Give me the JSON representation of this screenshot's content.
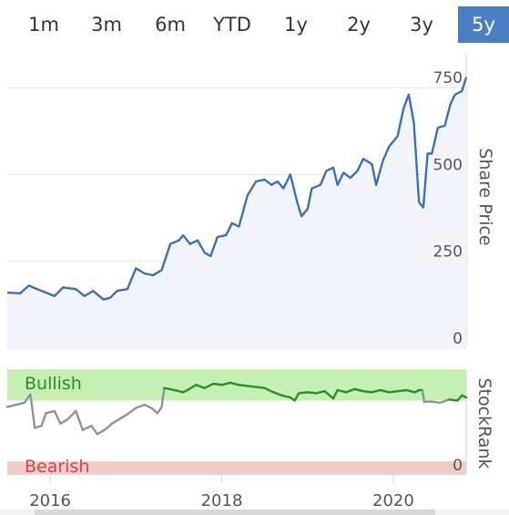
{
  "range_selector": {
    "buttons": [
      {
        "label": "1m"
      },
      {
        "label": "3m"
      },
      {
        "label": "6m"
      },
      {
        "label": "YTD"
      },
      {
        "label": "1y"
      },
      {
        "label": "2y"
      },
      {
        "label": "3y"
      },
      {
        "label": "5y"
      }
    ],
    "active_label": "5y"
  },
  "colors": {
    "price_line": "#3c6fb8",
    "price_area": "#f3f5fb",
    "bullish_band": "#c6efb6",
    "bearish_band": "#f1ccc4",
    "rank_bullish_line": "#2e8b2e",
    "rank_neutral_line": "#8a93a5",
    "active_button": "#4a7fc4"
  },
  "chart_data": [
    {
      "type": "line",
      "ylabel": "Share Price",
      "ylim": [
        0,
        850
      ],
      "yticks": [
        "0",
        "250",
        "500",
        "750"
      ],
      "series": [
        {
          "values": [
            [
              2015.5,
              160
            ],
            [
              2015.65,
              158
            ],
            [
              2015.75,
              180
            ],
            [
              2015.9,
              165
            ],
            [
              2016.05,
              150
            ],
            [
              2016.15,
              175
            ],
            [
              2016.3,
              170
            ],
            [
              2016.4,
              150
            ],
            [
              2016.5,
              165
            ],
            [
              2016.62,
              140
            ],
            [
              2016.7,
              145
            ],
            [
              2016.78,
              165
            ],
            [
              2016.9,
              170
            ],
            [
              2017.0,
              230
            ],
            [
              2017.1,
              215
            ],
            [
              2017.2,
              210
            ],
            [
              2017.3,
              225
            ],
            [
              2017.4,
              300
            ],
            [
              2017.5,
              310
            ],
            [
              2017.55,
              325
            ],
            [
              2017.63,
              300
            ],
            [
              2017.72,
              310
            ],
            [
              2017.8,
              275
            ],
            [
              2017.87,
              265
            ],
            [
              2017.95,
              320
            ],
            [
              2018.05,
              325
            ],
            [
              2018.12,
              360
            ],
            [
              2018.2,
              350
            ],
            [
              2018.3,
              440
            ],
            [
              2018.4,
              480
            ],
            [
              2018.5,
              485
            ],
            [
              2018.58,
              470
            ],
            [
              2018.65,
              480
            ],
            [
              2018.72,
              460
            ],
            [
              2018.8,
              500
            ],
            [
              2018.88,
              420
            ],
            [
              2018.93,
              380
            ],
            [
              2019.0,
              400
            ],
            [
              2019.05,
              460
            ],
            [
              2019.15,
              470
            ],
            [
              2019.22,
              510
            ],
            [
              2019.3,
              520
            ],
            [
              2019.35,
              470
            ],
            [
              2019.42,
              505
            ],
            [
              2019.5,
              490
            ],
            [
              2019.58,
              510
            ],
            [
              2019.65,
              545
            ],
            [
              2019.75,
              530
            ],
            [
              2019.8,
              470
            ],
            [
              2019.88,
              540
            ],
            [
              2019.95,
              580
            ],
            [
              2020.05,
              610
            ],
            [
              2020.12,
              690
            ],
            [
              2020.18,
              730
            ],
            [
              2020.24,
              650
            ],
            [
              2020.3,
              420
            ],
            [
              2020.35,
              405
            ],
            [
              2020.4,
              560
            ],
            [
              2020.45,
              560
            ],
            [
              2020.52,
              635
            ],
            [
              2020.6,
              640
            ],
            [
              2020.67,
              705
            ],
            [
              2020.72,
              730
            ],
            [
              2020.8,
              740
            ],
            [
              2020.85,
              780
            ]
          ]
        }
      ]
    },
    {
      "type": "line",
      "ylabel": "StockRank",
      "ylim": [
        0,
        100
      ],
      "band_labels": {
        "bullish": "Bullish",
        "bearish": "Bearish"
      },
      "band_ranges": {
        "bullish": [
          70,
          100
        ],
        "bearish": [
          0,
          12
        ]
      },
      "yticks": [
        "0"
      ],
      "xticks": [
        "2016",
        "2018",
        "2020"
      ],
      "series": [
        {
          "values": [
            [
              2015.5,
              64
            ],
            [
              2015.7,
              68
            ],
            [
              2015.77,
              76
            ],
            [
              2015.82,
              44
            ],
            [
              2015.9,
              46
            ],
            [
              2015.95,
              58
            ],
            [
              2016.05,
              60
            ],
            [
              2016.12,
              48
            ],
            [
              2016.2,
              52
            ],
            [
              2016.3,
              60
            ],
            [
              2016.38,
              42
            ],
            [
              2016.48,
              46
            ],
            [
              2016.55,
              38
            ],
            [
              2016.65,
              43
            ],
            [
              2016.72,
              48
            ],
            [
              2016.8,
              52
            ],
            [
              2016.9,
              57
            ],
            [
              2017.0,
              63
            ],
            [
              2017.1,
              66
            ],
            [
              2017.18,
              63
            ],
            [
              2017.25,
              58
            ],
            [
              2017.3,
              64
            ],
            [
              2017.33,
              82
            ],
            [
              2017.45,
              80
            ],
            [
              2017.55,
              78
            ],
            [
              2017.6,
              80
            ],
            [
              2017.7,
              85
            ],
            [
              2017.8,
              82
            ],
            [
              2017.9,
              86
            ],
            [
              2018.0,
              85
            ],
            [
              2018.1,
              87
            ],
            [
              2018.2,
              85
            ],
            [
              2018.3,
              84
            ],
            [
              2018.4,
              83
            ],
            [
              2018.5,
              82
            ],
            [
              2018.6,
              78
            ],
            [
              2018.7,
              75
            ],
            [
              2018.8,
              73
            ],
            [
              2018.85,
              70
            ],
            [
              2018.9,
              77
            ],
            [
              2019.0,
              78
            ],
            [
              2019.1,
              77
            ],
            [
              2019.2,
              79
            ],
            [
              2019.3,
              72
            ],
            [
              2019.35,
              80
            ],
            [
              2019.45,
              78
            ],
            [
              2019.55,
              81
            ],
            [
              2019.65,
              79
            ],
            [
              2019.75,
              78
            ],
            [
              2019.85,
              80
            ],
            [
              2019.95,
              78
            ],
            [
              2020.05,
              79
            ],
            [
              2020.15,
              80
            ],
            [
              2020.2,
              79
            ],
            [
              2020.25,
              78
            ],
            [
              2020.3,
              80
            ],
            [
              2020.34,
              80
            ],
            [
              2020.36,
              69
            ],
            [
              2020.45,
              69
            ],
            [
              2020.55,
              68
            ],
            [
              2020.65,
              71
            ],
            [
              2020.75,
              70
            ],
            [
              2020.8,
              75
            ],
            [
              2020.85,
              73
            ]
          ]
        }
      ]
    }
  ]
}
